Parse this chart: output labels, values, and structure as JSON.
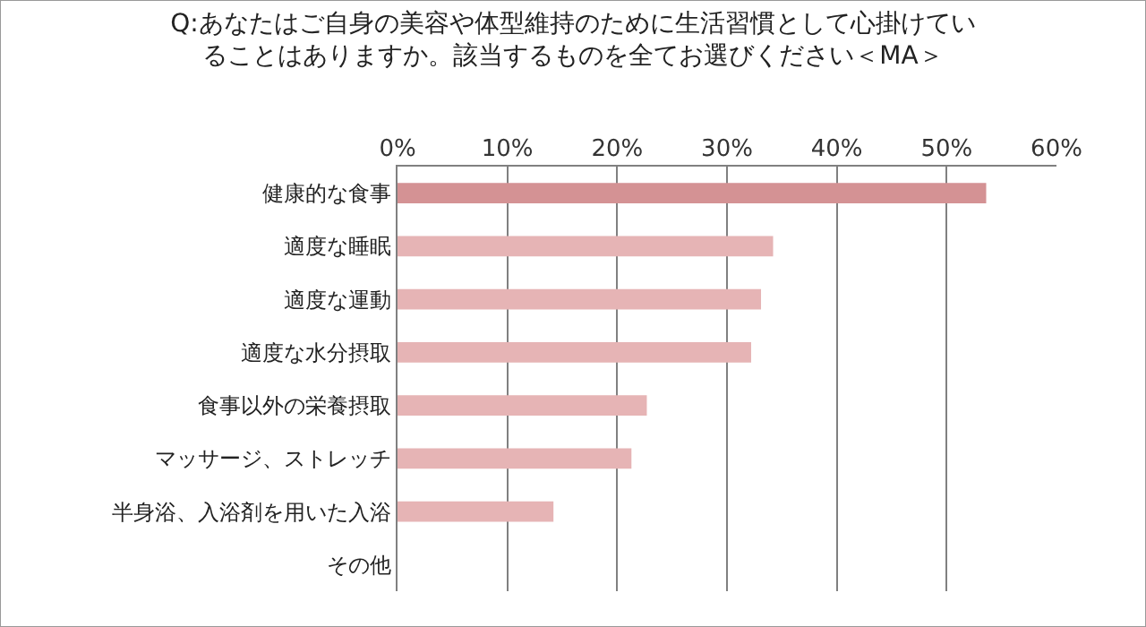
{
  "chart_data": {
    "type": "bar",
    "orientation": "horizontal",
    "title": "Q:あなたはご自身の美容や体型維持のために生活習慣として心掛けていることはありますか。該当するものを全てお選びください＜MA＞",
    "categories": [
      "健康的な食事",
      "適度な睡眠",
      "適度な運動",
      "適度な水分摂取",
      "食事以外の栄養摂取",
      "マッサージ、ストレッチ",
      "半身浴、入浴剤を用いた入浴",
      "その他"
    ],
    "values": [
      53.6,
      34.2,
      33.1,
      32.2,
      22.7,
      21.3,
      14.2,
      0
    ],
    "colors": [
      "#d49294",
      "#e6b4b5",
      "#e6b4b5",
      "#e6b4b5",
      "#e6b4b5",
      "#e6b4b5",
      "#e6b4b5",
      "#e6b4b5"
    ],
    "xlim": [
      0,
      60
    ],
    "xticks": [
      {
        "value": 0,
        "label": "0%"
      },
      {
        "value": 10,
        "label": "10%"
      },
      {
        "value": 20,
        "label": "20%"
      },
      {
        "value": 30,
        "label": "30%"
      },
      {
        "value": 40,
        "label": "40%"
      },
      {
        "value": 50,
        "label": "50%"
      },
      {
        "value": 60,
        "label": "60%"
      }
    ],
    "grid": "x",
    "legend": false
  }
}
